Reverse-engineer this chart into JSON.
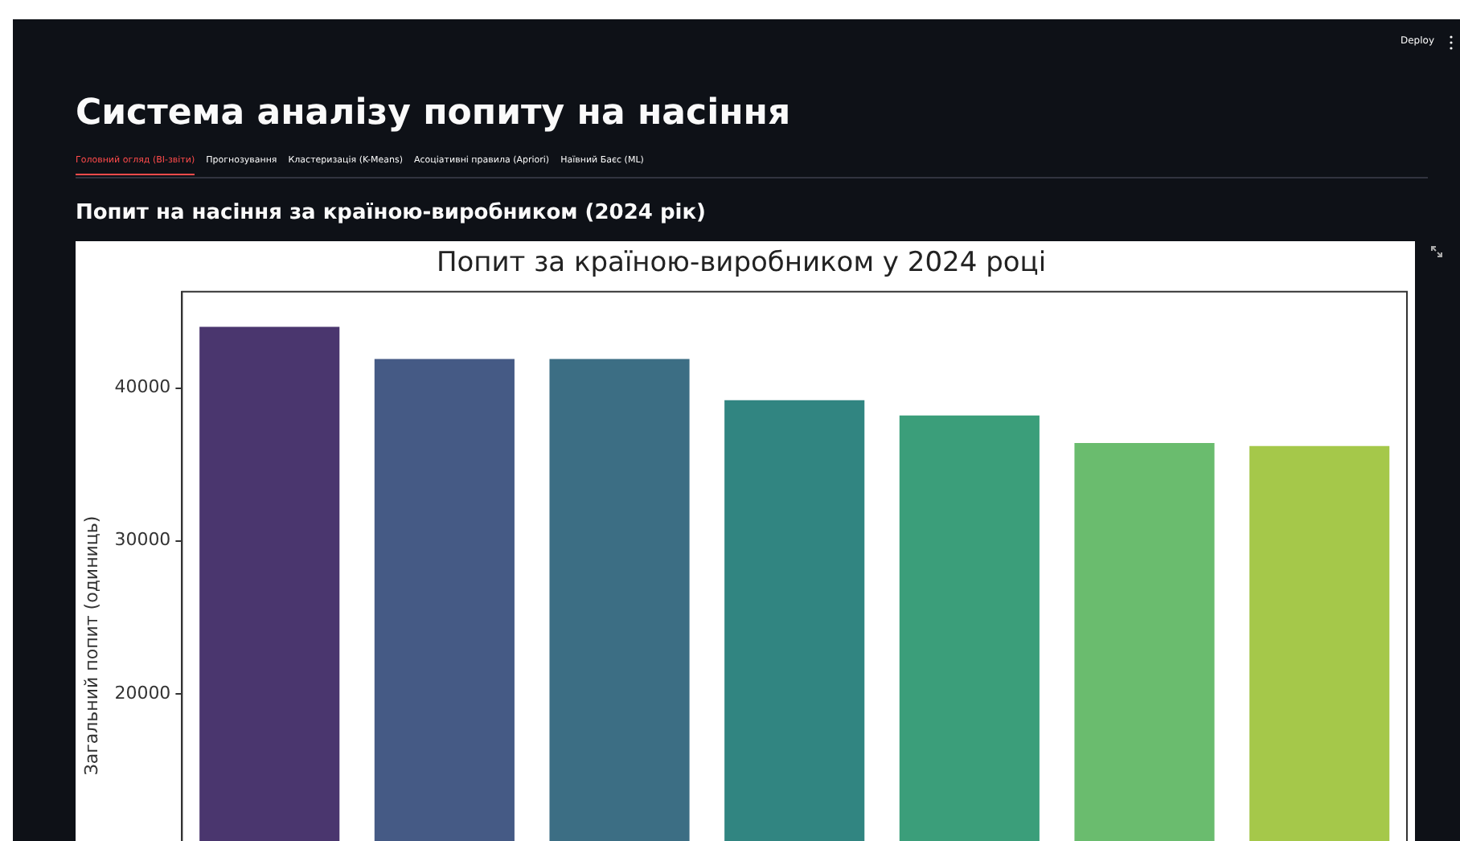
{
  "chart_data": {
    "type": "bar",
    "title": "Попит за країною-виробником у 2024 році",
    "subtitle": "Попит на насіння за країною-виробником (2024 рік)",
    "ylabel": "Загальний попит (одиниць)",
    "annotations": [
      "Система аналізу попиту на насіння",
      "Головний огляд (BI-звіти)",
      "Прогнозування",
      "Кластеризація (K-Means)",
      "Асоціативні правила (Apriori)",
      "Наївний Баєс (ML)",
      "Deploy"
    ],
    "categories": [
      null,
      null,
      null,
      null,
      null,
      null,
      null
    ],
    "values": [
      44000,
      41900,
      41900,
      39200,
      38200,
      36400,
      36200
    ],
    "colors": [
      "#4a366e",
      "#455a85",
      "#3c6e84",
      "#318581",
      "#3b9e7a",
      "#6abc6e",
      "#a5c84a"
    ],
    "ylim": [
      0,
      46300
    ],
    "yticks": [
      20000,
      30000,
      40000
    ],
    "grid": false,
    "legend": false
  }
}
